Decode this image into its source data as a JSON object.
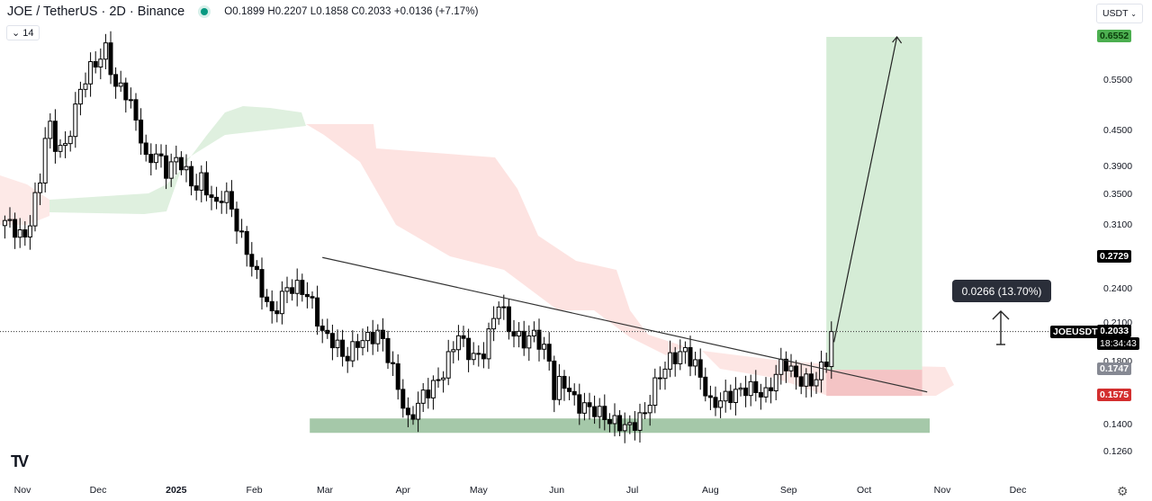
{
  "header": {
    "title": "JOE / TetherUS · 2D · Binance",
    "status_color": "#089981",
    "open": "O0.1899",
    "high": "H0.2207",
    "low": "L0.1858",
    "close": "C0.2033",
    "change": "+0.0136 (+7.17%)",
    "indicator_toggle": "14"
  },
  "currency_button": "USDT",
  "settings_icon": "gear-icon",
  "logo": "TV",
  "measure_label": "0.0266 (13.70%)",
  "symbol_tag": "JOEUSDT",
  "countdown": "18:34:43",
  "chart_data": {
    "type": "candlestick",
    "scale": "log",
    "ylim": [
      0.118,
      0.7
    ],
    "y_ticks": [
      "0.5500",
      "0.4500",
      "0.3900",
      "0.3500",
      "0.3100",
      "0.2400",
      "0.2100",
      "0.1800",
      "0.1400",
      "0.1260"
    ],
    "price_tags": [
      {
        "value": "0.6552",
        "bg": "#4caf50",
        "fg": "#0b3d0b"
      },
      {
        "value": "0.2729",
        "bg": "#000000",
        "fg": "#ffffff"
      },
      {
        "value": "0.2033",
        "bg": "#000000",
        "fg": "#ffffff"
      },
      {
        "value": "0.1747",
        "bg": "#868993",
        "fg": "#ffffff"
      },
      {
        "value": "0.1575",
        "bg": "#d32f2f",
        "fg": "#ffffff"
      }
    ],
    "x_ticks": [
      {
        "label": "Nov",
        "date": "2024-11-01"
      },
      {
        "label": "Dec",
        "date": "2024-12-01"
      },
      {
        "label": "2025",
        "date": "2025-01-01",
        "bold": true
      },
      {
        "label": "Feb",
        "date": "2025-02-01"
      },
      {
        "label": "Mar",
        "date": "2025-03-01"
      },
      {
        "label": "Apr",
        "date": "2025-04-01"
      },
      {
        "label": "May",
        "date": "2025-05-01"
      },
      {
        "label": "Jun",
        "date": "2025-06-01"
      },
      {
        "label": "Jul",
        "date": "2025-07-01"
      },
      {
        "label": "Aug",
        "date": "2025-08-01"
      },
      {
        "label": "Sep",
        "date": "2025-09-01"
      },
      {
        "label": "Oct",
        "date": "2025-10-01"
      },
      {
        "label": "Nov",
        "date": "2025-11-01"
      },
      {
        "label": "Dec",
        "date": "2025-12-01"
      }
    ],
    "closes": [
      [
        "2024-10-25",
        0.316
      ],
      [
        "2024-11-02",
        0.294
      ],
      [
        "2024-11-08",
        0.371
      ],
      [
        "2024-11-11",
        0.485
      ],
      [
        "2024-11-13",
        0.428
      ],
      [
        "2024-11-18",
        0.421
      ],
      [
        "2024-11-24",
        0.531
      ],
      [
        "2024-11-27",
        0.57
      ],
      [
        "2024-12-03",
        0.612
      ],
      [
        "2024-12-05",
        0.634
      ],
      [
        "2024-12-07",
        0.531
      ],
      [
        "2024-12-11",
        0.54
      ],
      [
        "2024-12-17",
        0.46
      ],
      [
        "2024-12-20",
        0.399
      ],
      [
        "2024-12-24",
        0.413
      ],
      [
        "2024-12-28",
        0.385
      ],
      [
        "2025-01-02",
        0.406
      ],
      [
        "2025-01-08",
        0.358
      ],
      [
        "2025-01-11",
        0.371
      ],
      [
        "2025-01-17",
        0.334
      ],
      [
        "2025-01-20",
        0.358
      ],
      [
        "2025-01-27",
        0.294
      ],
      [
        "2025-02-01",
        0.26
      ],
      [
        "2025-02-05",
        0.233
      ],
      [
        "2025-02-08",
        0.217
      ],
      [
        "2025-02-14",
        0.242
      ],
      [
        "2025-02-19",
        0.242
      ],
      [
        "2025-02-23",
        0.233
      ],
      [
        "2025-02-28",
        0.202
      ],
      [
        "2025-03-05",
        0.195
      ],
      [
        "2025-03-09",
        0.182
      ],
      [
        "2025-03-14",
        0.195
      ],
      [
        "2025-03-23",
        0.202
      ],
      [
        "2025-03-29",
        0.169
      ],
      [
        "2025-04-03",
        0.142
      ],
      [
        "2025-04-09",
        0.158
      ],
      [
        "2025-04-16",
        0.169
      ],
      [
        "2025-04-23",
        0.202
      ],
      [
        "2025-04-26",
        0.188
      ],
      [
        "2025-05-02",
        0.182
      ],
      [
        "2025-05-09",
        0.229
      ],
      [
        "2025-05-14",
        0.202
      ],
      [
        "2025-05-20",
        0.195
      ],
      [
        "2025-05-23",
        0.202
      ],
      [
        "2025-05-29",
        0.182
      ],
      [
        "2025-05-31",
        0.158
      ],
      [
        "2025-06-03",
        0.169
      ],
      [
        "2025-06-09",
        0.152
      ],
      [
        "2025-06-16",
        0.149
      ],
      [
        "2025-06-23",
        0.142
      ],
      [
        "2025-06-30",
        0.139
      ],
      [
        "2025-07-06",
        0.147
      ],
      [
        "2025-07-11",
        0.169
      ],
      [
        "2025-07-16",
        0.182
      ],
      [
        "2025-07-22",
        0.188
      ],
      [
        "2025-07-27",
        0.175
      ],
      [
        "2025-08-01",
        0.152
      ],
      [
        "2025-08-09",
        0.158
      ],
      [
        "2025-08-16",
        0.163
      ],
      [
        "2025-08-23",
        0.158
      ],
      [
        "2025-08-30",
        0.182
      ],
      [
        "2025-09-04",
        0.169
      ],
      [
        "2025-09-10",
        0.166
      ],
      [
        "2025-09-13",
        0.172
      ],
      [
        "2025-09-17",
        0.185
      ],
      [
        "2025-09-19",
        0.2033
      ]
    ],
    "trendline": [
      [
        "2025-02-28",
        0.2729
      ],
      [
        "2025-10-26",
        0.16
      ]
    ],
    "support_zone": {
      "from": "2025-02-23",
      "to": "2025-10-27",
      "low": 0.136,
      "high": 0.144,
      "color": "#a5c8a9"
    },
    "long_position": {
      "from": "2025-09-16",
      "to": "2025-10-24",
      "entry": 0.1747,
      "stop": 0.1575,
      "target": 0.6552
    },
    "projection_arrow": [
      [
        "2025-09-19",
        0.195
      ],
      [
        "2025-10-14",
        0.6552
      ]
    ],
    "current_price": 0.2033,
    "colors": {
      "up_body": "#ffffff",
      "down_body": "#000000",
      "wick": "#000000",
      "cloud_bull": "#dff0df",
      "cloud_bear": "#fde3e1",
      "target": "#d5ecd6",
      "stop": "#f4c4c5"
    }
  }
}
